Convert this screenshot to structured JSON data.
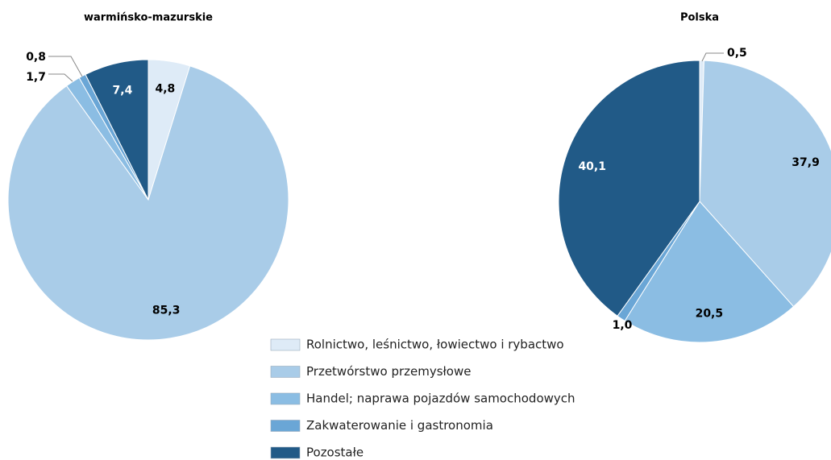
{
  "chart_data": [
    {
      "type": "pie",
      "title": "warmińsko-mazurskie",
      "values": [
        4.8,
        85.3,
        1.7,
        0.8,
        7.4
      ],
      "value_labels": [
        "4,8",
        "85,3",
        "1,7",
        "0,8",
        "7,4"
      ]
    },
    {
      "type": "pie",
      "title": "Polska",
      "values": [
        0.5,
        37.9,
        20.5,
        1.0,
        40.1
      ],
      "value_labels": [
        "0,5",
        "37,9",
        "20,5",
        "1,0",
        "40,1"
      ]
    }
  ],
  "legend": {
    "labels": [
      "Rolnictwo, leśnictwo, łowiectwo i rybactwo",
      "Przetwórstwo przemysłowe",
      "Handel; naprawa pojazdów samochodowych",
      "Zakwaterowanie i gastronomia",
      "Pozostałe"
    ],
    "colors": [
      "#deebf7",
      "#a9cce8",
      "#8bbde3",
      "#6aa6d6",
      "#215a87"
    ]
  }
}
